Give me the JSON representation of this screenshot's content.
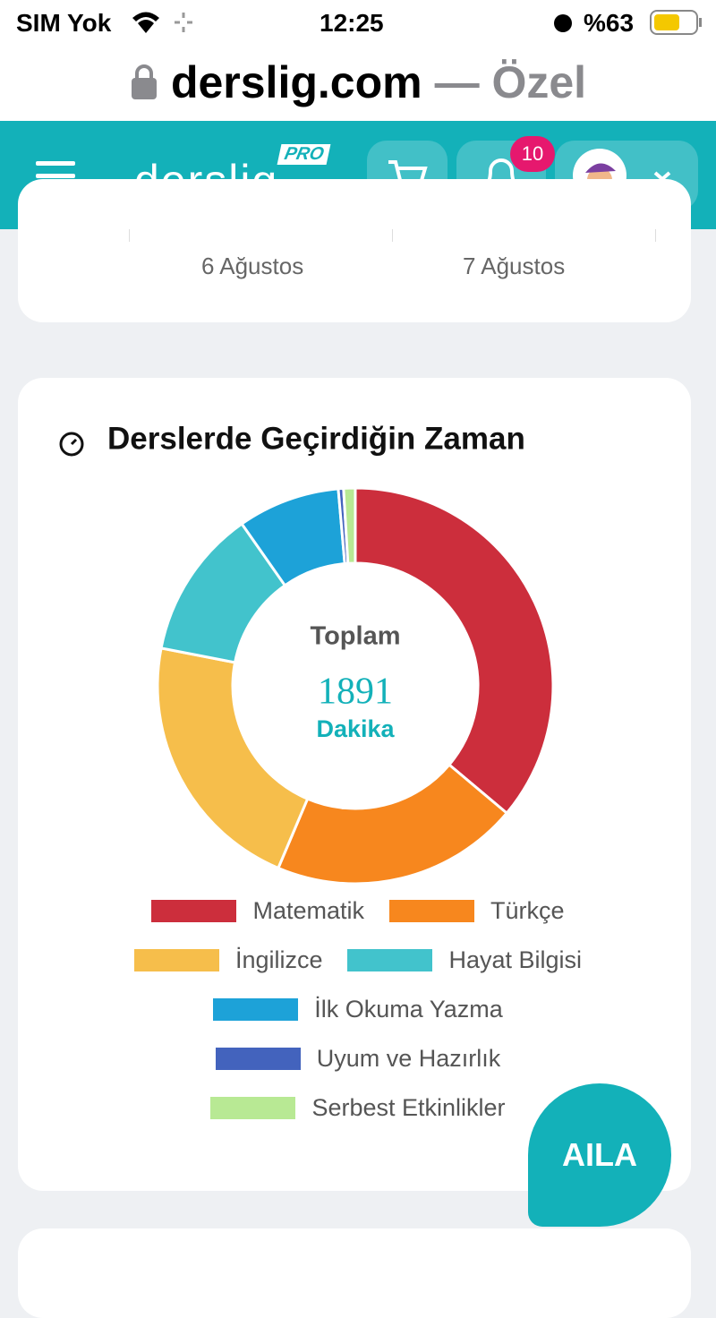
{
  "status_bar": {
    "carrier": "SIM Yok",
    "time": "12:25",
    "battery": "%63"
  },
  "url_bar": {
    "domain": "derslig.com",
    "mode": "— Özel"
  },
  "nav": {
    "logo": "derslig",
    "badge": "PRO",
    "notifications": "10"
  },
  "previous_card": {
    "x_labels": [
      "6 Ağustos",
      "7 Ağustos"
    ]
  },
  "chart_data": {
    "type": "pie",
    "title": "Derslerde Geçirdiğin Zaman",
    "center_label": "Toplam",
    "center_value": "1891",
    "center_unit": "Dakika",
    "categories": [
      "Matematik",
      "Türkçe",
      "İngilizce",
      "Hayat Bilgisi",
      "İlk Okuma Yazma",
      "Uyum ve Hazırlık",
      "Serbest Etkinlikler"
    ],
    "values": [
      683,
      383,
      410,
      231,
      158,
      8,
      18
    ],
    "colors": [
      "#cc2e3c",
      "#f7871e",
      "#f6be4b",
      "#42c3cc",
      "#1da2d8",
      "#4363bd",
      "#b8e994"
    ]
  },
  "assistant_button": "AILA"
}
